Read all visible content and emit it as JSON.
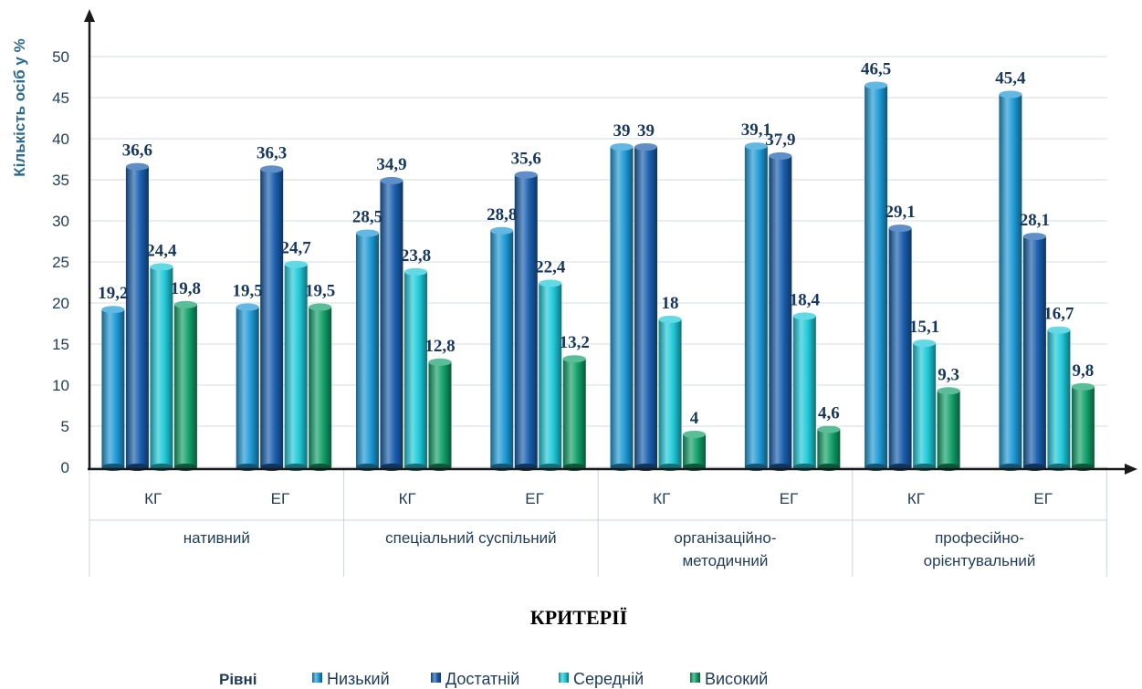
{
  "chart_data": {
    "type": "bar",
    "ylabel": "Кількість осіб у %",
    "xlabel": "КРИТЕРІЇ",
    "ylim": [
      0,
      50
    ],
    "yticks": [
      0,
      5,
      10,
      15,
      20,
      25,
      30,
      35,
      40,
      45,
      50
    ],
    "grid": true,
    "legend_title": "Рівні",
    "legend_position": "bottom",
    "groups": [
      {
        "label": "нативний",
        "label_lines": [
          "нативний"
        ],
        "categories": [
          "КГ",
          "ЕГ"
        ]
      },
      {
        "label": "спеціальний суспільний",
        "label_lines": [
          "спеціальний суспільний"
        ],
        "categories": [
          "КГ",
          "ЕГ"
        ]
      },
      {
        "label": "організаційно-методичний",
        "label_lines": [
          "організаційно-",
          "методичний"
        ],
        "categories": [
          "КГ",
          "ЕГ"
        ]
      },
      {
        "label": "професійно-орієнтувальний",
        "label_lines": [
          "професійно-",
          "орієнтувальний"
        ],
        "categories": [
          "КГ",
          "ЕГ"
        ]
      }
    ],
    "series": [
      {
        "name": "Низький",
        "color": "#1e9ad6",
        "values": [
          19.2,
          19.5,
          28.5,
          28.8,
          39,
          39.1,
          46.5,
          45.4
        ],
        "labels": [
          "19,2",
          "19,5",
          "28,5",
          "28,8",
          "39",
          "39,1",
          "46,5",
          "45,4"
        ]
      },
      {
        "name": "Достатній",
        "color": "#1a5fae",
        "values": [
          36.6,
          36.3,
          34.9,
          35.6,
          39,
          37.9,
          29.1,
          28.1
        ],
        "labels": [
          "36,6",
          "36,3",
          "34,9",
          "35,6",
          "39",
          "37,9",
          "29,1",
          "28,1"
        ]
      },
      {
        "name": "Середній",
        "color": "#1fc9d9",
        "values": [
          24.4,
          24.7,
          23.8,
          22.4,
          18,
          18.4,
          15.1,
          16.7
        ],
        "labels": [
          "24,4",
          "24,7",
          "23,8",
          "22,4",
          "18",
          "18,4",
          "15,1",
          "16,7"
        ]
      },
      {
        "name": "Високий",
        "color": "#13a06a",
        "values": [
          19.8,
          19.5,
          12.8,
          13.2,
          4,
          4.6,
          9.3,
          9.8
        ],
        "labels": [
          "19,8",
          "19,5",
          "12,8",
          "13,2",
          "4",
          "4,6",
          "9,3",
          "9,8"
        ]
      }
    ]
  }
}
